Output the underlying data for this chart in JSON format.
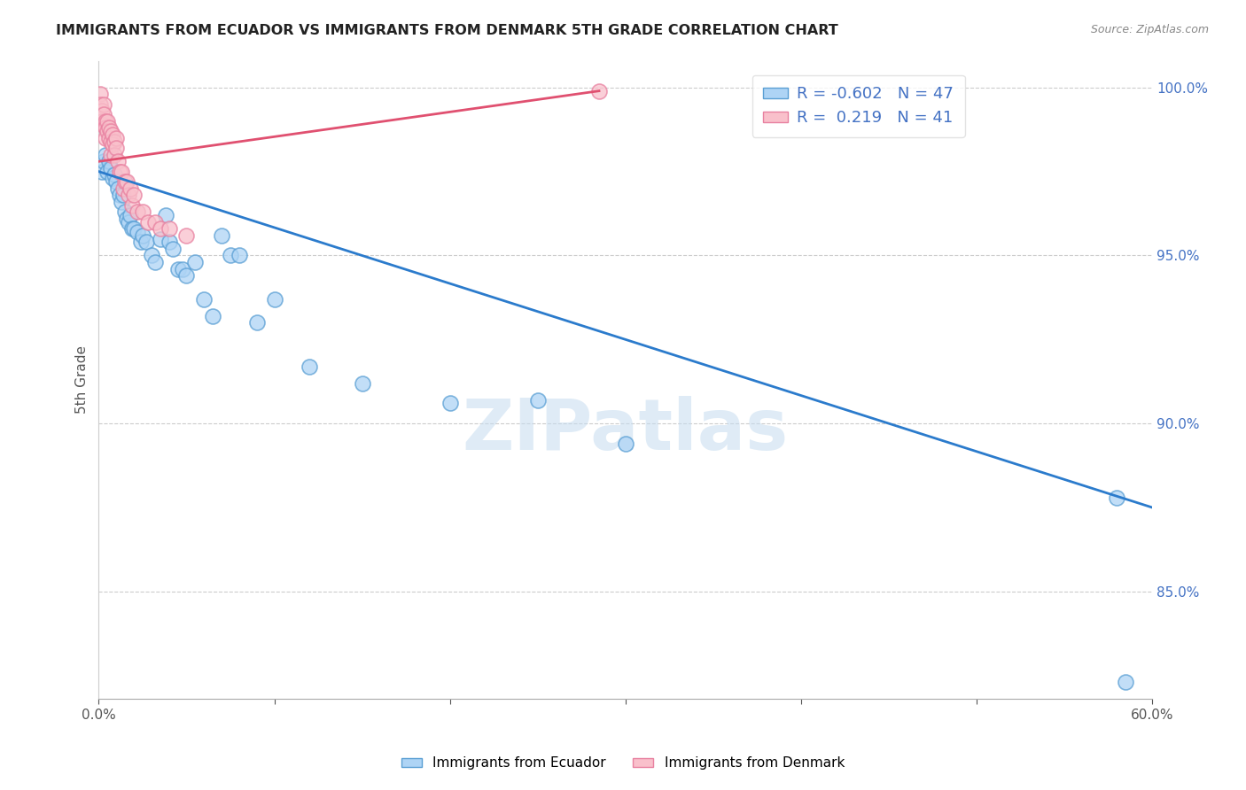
{
  "title": "IMMIGRANTS FROM ECUADOR VS IMMIGRANTS FROM DENMARK 5TH GRADE CORRELATION CHART",
  "source": "Source: ZipAtlas.com",
  "ylabel": "5th Grade",
  "xlim": [
    0.0,
    0.6
  ],
  "ylim": [
    0.818,
    1.008
  ],
  "xtick_positions": [
    0.0,
    0.1,
    0.2,
    0.3,
    0.4,
    0.5,
    0.6
  ],
  "xtick_labels": [
    "0.0%",
    "",
    "",
    "",
    "",
    "",
    "60.0%"
  ],
  "yticks_right": [
    0.85,
    0.9,
    0.95,
    1.0
  ],
  "ytick_labels_right": [
    "85.0%",
    "90.0%",
    "95.0%",
    "100.0%"
  ],
  "blue_R": -0.602,
  "blue_N": 47,
  "pink_R": 0.219,
  "pink_N": 41,
  "blue_fill_color": "#AED4F5",
  "blue_edge_color": "#5A9FD4",
  "pink_fill_color": "#F9C0CB",
  "pink_edge_color": "#E880A0",
  "blue_line_color": "#2B7BCC",
  "pink_line_color": "#E05070",
  "legend_label_blue": "Immigrants from Ecuador",
  "legend_label_pink": "Immigrants from Denmark",
  "watermark": "ZIPatlas",
  "blue_scatter_x": [
    0.002,
    0.003,
    0.004,
    0.005,
    0.006,
    0.007,
    0.008,
    0.009,
    0.01,
    0.011,
    0.012,
    0.013,
    0.014,
    0.015,
    0.016,
    0.017,
    0.018,
    0.019,
    0.02,
    0.022,
    0.024,
    0.025,
    0.027,
    0.03,
    0.032,
    0.035,
    0.038,
    0.04,
    0.042,
    0.045,
    0.048,
    0.05,
    0.055,
    0.06,
    0.065,
    0.07,
    0.075,
    0.08,
    0.09,
    0.1,
    0.12,
    0.15,
    0.2,
    0.25,
    0.3,
    0.58,
    0.585
  ],
  "blue_scatter_y": [
    0.975,
    0.978,
    0.98,
    0.975,
    0.978,
    0.976,
    0.973,
    0.974,
    0.972,
    0.97,
    0.968,
    0.966,
    0.968,
    0.963,
    0.961,
    0.96,
    0.962,
    0.958,
    0.958,
    0.957,
    0.954,
    0.956,
    0.954,
    0.95,
    0.948,
    0.955,
    0.962,
    0.954,
    0.952,
    0.946,
    0.946,
    0.944,
    0.948,
    0.937,
    0.932,
    0.956,
    0.95,
    0.95,
    0.93,
    0.937,
    0.917,
    0.912,
    0.906,
    0.907,
    0.894,
    0.878,
    0.823
  ],
  "pink_scatter_x": [
    0.001,
    0.001,
    0.002,
    0.002,
    0.003,
    0.003,
    0.003,
    0.004,
    0.004,
    0.004,
    0.005,
    0.005,
    0.006,
    0.006,
    0.007,
    0.007,
    0.007,
    0.008,
    0.008,
    0.009,
    0.009,
    0.01,
    0.01,
    0.011,
    0.012,
    0.013,
    0.014,
    0.015,
    0.016,
    0.017,
    0.018,
    0.019,
    0.02,
    0.022,
    0.025,
    0.028,
    0.032,
    0.035,
    0.04,
    0.05,
    0.285
  ],
  "pink_scatter_y": [
    0.998,
    0.995,
    0.993,
    0.99,
    0.995,
    0.992,
    0.989,
    0.99,
    0.988,
    0.985,
    0.99,
    0.987,
    0.988,
    0.985,
    0.987,
    0.984,
    0.98,
    0.986,
    0.983,
    0.984,
    0.98,
    0.985,
    0.982,
    0.978,
    0.975,
    0.975,
    0.97,
    0.972,
    0.972,
    0.968,
    0.97,
    0.965,
    0.968,
    0.963,
    0.963,
    0.96,
    0.96,
    0.958,
    0.958,
    0.956,
    0.999
  ],
  "blue_line_x": [
    0.0,
    0.6
  ],
  "blue_line_y": [
    0.975,
    0.875
  ],
  "pink_line_x": [
    0.0,
    0.285
  ],
  "pink_line_y": [
    0.978,
    0.999
  ]
}
